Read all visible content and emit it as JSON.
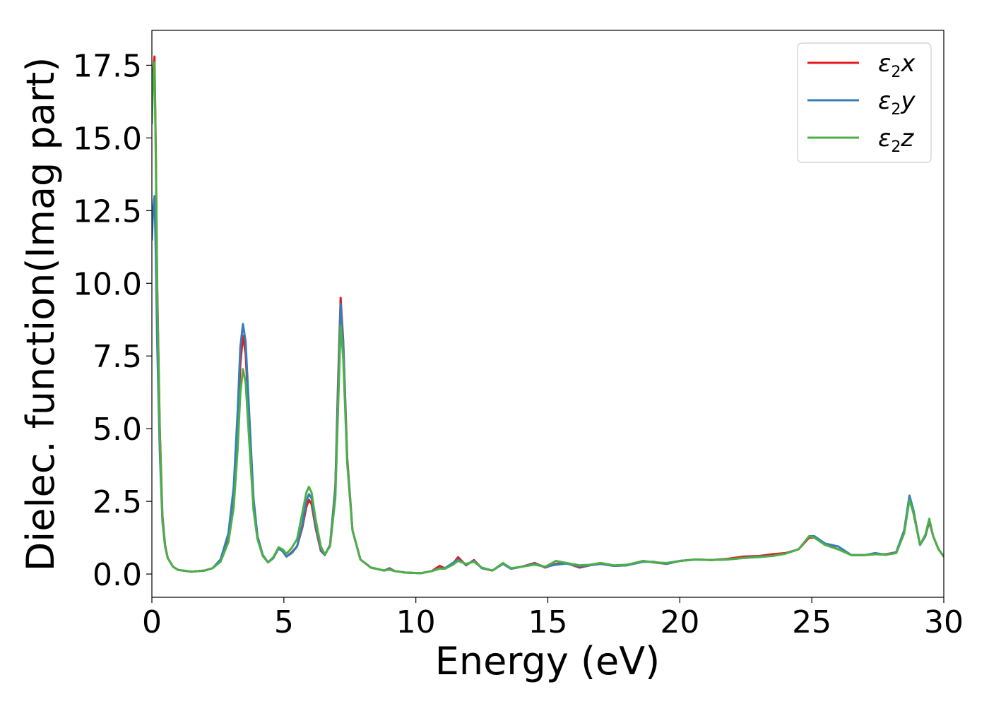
{
  "chart_data": {
    "type": "line",
    "title": "",
    "xlabel": "Energy (eV)",
    "ylabel": "Dielec. function(Imag part)",
    "xlim": [
      0,
      30
    ],
    "ylim": [
      -0.8,
      18.7
    ],
    "xticks": [
      0,
      5,
      10,
      15,
      20,
      25,
      30
    ],
    "xtick_labels": [
      "0",
      "5",
      "10",
      "15",
      "20",
      "25",
      "30"
    ],
    "yticks": [
      0,
      2.5,
      5,
      7.5,
      10,
      12.5,
      15,
      17.5
    ],
    "ytick_labels": [
      "0.0",
      "2.5",
      "5.0",
      "7.5",
      "10.0",
      "12.5",
      "15.0",
      "17.5"
    ],
    "grid": false,
    "legend_position": "top-right",
    "series": [
      {
        "name": "ε2x",
        "legend_base": "ε",
        "legend_sub": "2",
        "legend_suffix": "x",
        "color": "#e41a1c",
        "points": [
          [
            0,
            16.0
          ],
          [
            0.05,
            17.3
          ],
          [
            0.1,
            17.8
          ],
          [
            0.15,
            14.5
          ],
          [
            0.2,
            10.0
          ],
          [
            0.3,
            5.0
          ],
          [
            0.4,
            2.0
          ],
          [
            0.5,
            1.0
          ],
          [
            0.6,
            0.55
          ],
          [
            0.8,
            0.25
          ],
          [
            1.0,
            0.14
          ],
          [
            1.5,
            0.08
          ],
          [
            2.0,
            0.12
          ],
          [
            2.3,
            0.2
          ],
          [
            2.6,
            0.45
          ],
          [
            2.9,
            1.2
          ],
          [
            3.1,
            2.6
          ],
          [
            3.25,
            5.0
          ],
          [
            3.35,
            7.2
          ],
          [
            3.45,
            8.2
          ],
          [
            3.55,
            7.6
          ],
          [
            3.7,
            5.0
          ],
          [
            3.85,
            2.5
          ],
          [
            4.0,
            1.3
          ],
          [
            4.2,
            0.65
          ],
          [
            4.4,
            0.4
          ],
          [
            4.6,
            0.55
          ],
          [
            4.8,
            0.9
          ],
          [
            4.95,
            0.8
          ],
          [
            5.1,
            0.6
          ],
          [
            5.3,
            0.75
          ],
          [
            5.5,
            0.95
          ],
          [
            5.7,
            1.6
          ],
          [
            5.85,
            2.3
          ],
          [
            5.95,
            2.55
          ],
          [
            6.05,
            2.4
          ],
          [
            6.2,
            1.6
          ],
          [
            6.4,
            0.8
          ],
          [
            6.55,
            0.65
          ],
          [
            6.75,
            1.0
          ],
          [
            6.95,
            3.0
          ],
          [
            7.05,
            6.5
          ],
          [
            7.15,
            9.5
          ],
          [
            7.25,
            8.0
          ],
          [
            7.4,
            4.0
          ],
          [
            7.6,
            1.5
          ],
          [
            7.9,
            0.5
          ],
          [
            8.3,
            0.22
          ],
          [
            8.8,
            0.12
          ],
          [
            9.0,
            0.2
          ],
          [
            9.2,
            0.1
          ],
          [
            9.6,
            0.05
          ],
          [
            10.2,
            0.03
          ],
          [
            10.6,
            0.1
          ],
          [
            10.9,
            0.28
          ],
          [
            11.1,
            0.2
          ],
          [
            11.4,
            0.35
          ],
          [
            11.6,
            0.58
          ],
          [
            11.9,
            0.3
          ],
          [
            12.2,
            0.48
          ],
          [
            12.5,
            0.2
          ],
          [
            12.9,
            0.12
          ],
          [
            13.3,
            0.35
          ],
          [
            13.6,
            0.18
          ],
          [
            14.0,
            0.25
          ],
          [
            14.5,
            0.38
          ],
          [
            14.9,
            0.22
          ],
          [
            15.3,
            0.35
          ],
          [
            15.7,
            0.38
          ],
          [
            16.2,
            0.22
          ],
          [
            16.6,
            0.3
          ],
          [
            17.0,
            0.35
          ],
          [
            17.5,
            0.28
          ],
          [
            18.0,
            0.3
          ],
          [
            18.6,
            0.45
          ],
          [
            19.0,
            0.4
          ],
          [
            19.5,
            0.35
          ],
          [
            20.0,
            0.45
          ],
          [
            20.6,
            0.5
          ],
          [
            21.2,
            0.48
          ],
          [
            21.8,
            0.52
          ],
          [
            22.4,
            0.6
          ],
          [
            23.0,
            0.62
          ],
          [
            23.5,
            0.68
          ],
          [
            24.0,
            0.72
          ],
          [
            24.5,
            0.85
          ],
          [
            24.9,
            1.25
          ],
          [
            25.1,
            1.25
          ],
          [
            25.5,
            1.05
          ],
          [
            26.0,
            0.85
          ],
          [
            26.5,
            0.65
          ],
          [
            27.0,
            0.65
          ],
          [
            27.4,
            0.68
          ],
          [
            27.8,
            0.68
          ],
          [
            28.2,
            0.75
          ],
          [
            28.5,
            1.5
          ],
          [
            28.7,
            2.6
          ],
          [
            28.85,
            2.1
          ],
          [
            29.1,
            1.0
          ],
          [
            29.3,
            1.3
          ],
          [
            29.45,
            1.8
          ],
          [
            29.6,
            1.3
          ],
          [
            29.8,
            0.85
          ],
          [
            30.0,
            0.6
          ]
        ]
      },
      {
        "name": "ε2y",
        "legend_base": "ε",
        "legend_sub": "2",
        "legend_suffix": "y",
        "color": "#377eb8",
        "points": [
          [
            0,
            11.5
          ],
          [
            0.05,
            12.6
          ],
          [
            0.1,
            13.0
          ],
          [
            0.15,
            11.0
          ],
          [
            0.2,
            8.0
          ],
          [
            0.3,
            4.2
          ],
          [
            0.4,
            1.8
          ],
          [
            0.5,
            0.95
          ],
          [
            0.6,
            0.55
          ],
          [
            0.8,
            0.25
          ],
          [
            1.0,
            0.14
          ],
          [
            1.5,
            0.08
          ],
          [
            2.0,
            0.12
          ],
          [
            2.3,
            0.2
          ],
          [
            2.6,
            0.5
          ],
          [
            2.9,
            1.4
          ],
          [
            3.1,
            3.0
          ],
          [
            3.25,
            5.6
          ],
          [
            3.35,
            7.8
          ],
          [
            3.45,
            8.6
          ],
          [
            3.55,
            8.0
          ],
          [
            3.7,
            5.3
          ],
          [
            3.85,
            2.6
          ],
          [
            4.0,
            1.3
          ],
          [
            4.2,
            0.65
          ],
          [
            4.4,
            0.4
          ],
          [
            4.6,
            0.55
          ],
          [
            4.8,
            0.88
          ],
          [
            4.95,
            0.78
          ],
          [
            5.1,
            0.6
          ],
          [
            5.3,
            0.72
          ],
          [
            5.5,
            0.95
          ],
          [
            5.7,
            1.7
          ],
          [
            5.85,
            2.5
          ],
          [
            5.95,
            2.75
          ],
          [
            6.05,
            2.6
          ],
          [
            6.2,
            1.7
          ],
          [
            6.4,
            0.85
          ],
          [
            6.55,
            0.65
          ],
          [
            6.75,
            1.0
          ],
          [
            6.95,
            2.9
          ],
          [
            7.05,
            6.2
          ],
          [
            7.15,
            9.3
          ],
          [
            7.25,
            7.9
          ],
          [
            7.4,
            3.9
          ],
          [
            7.6,
            1.5
          ],
          [
            7.9,
            0.5
          ],
          [
            8.3,
            0.22
          ],
          [
            8.8,
            0.12
          ],
          [
            9.0,
            0.18
          ],
          [
            9.2,
            0.1
          ],
          [
            9.6,
            0.05
          ],
          [
            10.2,
            0.03
          ],
          [
            10.6,
            0.1
          ],
          [
            10.9,
            0.2
          ],
          [
            11.1,
            0.2
          ],
          [
            11.4,
            0.38
          ],
          [
            11.6,
            0.5
          ],
          [
            11.9,
            0.32
          ],
          [
            12.2,
            0.45
          ],
          [
            12.5,
            0.2
          ],
          [
            12.9,
            0.12
          ],
          [
            13.3,
            0.35
          ],
          [
            13.6,
            0.18
          ],
          [
            14.0,
            0.25
          ],
          [
            14.5,
            0.35
          ],
          [
            14.9,
            0.25
          ],
          [
            15.3,
            0.32
          ],
          [
            15.7,
            0.36
          ],
          [
            16.2,
            0.26
          ],
          [
            16.6,
            0.3
          ],
          [
            17.0,
            0.35
          ],
          [
            17.5,
            0.28
          ],
          [
            18.0,
            0.3
          ],
          [
            18.6,
            0.42
          ],
          [
            19.0,
            0.42
          ],
          [
            19.5,
            0.35
          ],
          [
            20.0,
            0.45
          ],
          [
            20.6,
            0.5
          ],
          [
            21.2,
            0.48
          ],
          [
            21.8,
            0.5
          ],
          [
            22.4,
            0.55
          ],
          [
            23.0,
            0.6
          ],
          [
            23.5,
            0.62
          ],
          [
            24.0,
            0.7
          ],
          [
            24.5,
            0.85
          ],
          [
            24.9,
            1.3
          ],
          [
            25.1,
            1.3
          ],
          [
            25.5,
            1.05
          ],
          [
            26.0,
            0.95
          ],
          [
            26.5,
            0.65
          ],
          [
            27.0,
            0.65
          ],
          [
            27.4,
            0.72
          ],
          [
            27.8,
            0.66
          ],
          [
            28.2,
            0.75
          ],
          [
            28.5,
            1.5
          ],
          [
            28.7,
            2.7
          ],
          [
            28.85,
            2.2
          ],
          [
            29.1,
            1.0
          ],
          [
            29.3,
            1.3
          ],
          [
            29.45,
            1.85
          ],
          [
            29.6,
            1.3
          ],
          [
            29.8,
            0.85
          ],
          [
            30.0,
            0.6
          ]
        ]
      },
      {
        "name": "ε2z",
        "legend_base": "ε",
        "legend_sub": "2",
        "legend_suffix": "z",
        "color": "#4daf4a",
        "points": [
          [
            0,
            15.5
          ],
          [
            0.05,
            17.2
          ],
          [
            0.1,
            17.6
          ],
          [
            0.15,
            14.2
          ],
          [
            0.2,
            9.8
          ],
          [
            0.3,
            4.8
          ],
          [
            0.4,
            1.9
          ],
          [
            0.5,
            0.95
          ],
          [
            0.6,
            0.55
          ],
          [
            0.8,
            0.25
          ],
          [
            1.0,
            0.14
          ],
          [
            1.5,
            0.08
          ],
          [
            2.0,
            0.12
          ],
          [
            2.3,
            0.2
          ],
          [
            2.6,
            0.42
          ],
          [
            2.9,
            1.1
          ],
          [
            3.1,
            2.3
          ],
          [
            3.25,
            4.3
          ],
          [
            3.35,
            6.2
          ],
          [
            3.45,
            7.05
          ],
          [
            3.55,
            6.6
          ],
          [
            3.7,
            4.4
          ],
          [
            3.85,
            2.2
          ],
          [
            4.0,
            1.2
          ],
          [
            4.2,
            0.62
          ],
          [
            4.4,
            0.4
          ],
          [
            4.6,
            0.58
          ],
          [
            4.8,
            0.92
          ],
          [
            4.95,
            0.85
          ],
          [
            5.1,
            0.7
          ],
          [
            5.3,
            0.9
          ],
          [
            5.5,
            1.2
          ],
          [
            5.7,
            2.1
          ],
          [
            5.85,
            2.8
          ],
          [
            5.95,
            3.0
          ],
          [
            6.05,
            2.8
          ],
          [
            6.2,
            1.9
          ],
          [
            6.4,
            0.95
          ],
          [
            6.55,
            0.68
          ],
          [
            6.75,
            0.95
          ],
          [
            6.95,
            2.6
          ],
          [
            7.05,
            5.6
          ],
          [
            7.15,
            8.55
          ],
          [
            7.25,
            7.4
          ],
          [
            7.4,
            3.8
          ],
          [
            7.6,
            1.5
          ],
          [
            7.9,
            0.5
          ],
          [
            8.3,
            0.22
          ],
          [
            8.8,
            0.12
          ],
          [
            9.0,
            0.15
          ],
          [
            9.2,
            0.1
          ],
          [
            9.6,
            0.05
          ],
          [
            10.2,
            0.03
          ],
          [
            10.6,
            0.1
          ],
          [
            10.9,
            0.18
          ],
          [
            11.1,
            0.18
          ],
          [
            11.4,
            0.32
          ],
          [
            11.6,
            0.45
          ],
          [
            11.9,
            0.35
          ],
          [
            12.2,
            0.42
          ],
          [
            12.5,
            0.22
          ],
          [
            12.9,
            0.12
          ],
          [
            13.3,
            0.38
          ],
          [
            13.6,
            0.2
          ],
          [
            14.0,
            0.25
          ],
          [
            14.5,
            0.32
          ],
          [
            14.9,
            0.25
          ],
          [
            15.3,
            0.45
          ],
          [
            15.7,
            0.38
          ],
          [
            16.2,
            0.3
          ],
          [
            16.6,
            0.32
          ],
          [
            17.0,
            0.38
          ],
          [
            17.5,
            0.3
          ],
          [
            18.0,
            0.32
          ],
          [
            18.6,
            0.45
          ],
          [
            19.0,
            0.4
          ],
          [
            19.5,
            0.38
          ],
          [
            20.0,
            0.45
          ],
          [
            20.6,
            0.5
          ],
          [
            21.2,
            0.48
          ],
          [
            21.8,
            0.5
          ],
          [
            22.4,
            0.55
          ],
          [
            23.0,
            0.58
          ],
          [
            23.5,
            0.62
          ],
          [
            24.0,
            0.7
          ],
          [
            24.5,
            0.85
          ],
          [
            24.9,
            1.3
          ],
          [
            25.1,
            1.25
          ],
          [
            25.5,
            1.0
          ],
          [
            26.0,
            0.85
          ],
          [
            26.5,
            0.65
          ],
          [
            27.0,
            0.65
          ],
          [
            27.4,
            0.68
          ],
          [
            27.8,
            0.66
          ],
          [
            28.2,
            0.72
          ],
          [
            28.5,
            1.4
          ],
          [
            28.7,
            2.55
          ],
          [
            28.85,
            2.1
          ],
          [
            29.1,
            1.0
          ],
          [
            29.3,
            1.35
          ],
          [
            29.45,
            1.9
          ],
          [
            29.6,
            1.3
          ],
          [
            29.8,
            0.85
          ],
          [
            30.0,
            0.6
          ]
        ]
      }
    ]
  }
}
